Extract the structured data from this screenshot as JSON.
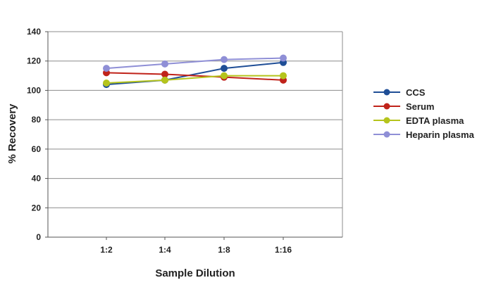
{
  "chart_data": {
    "type": "line",
    "title": "",
    "xlabel": "Sample Dilution",
    "ylabel": "% Recovery",
    "categories": [
      "1:2",
      "1:4",
      "1:8",
      "1:16"
    ],
    "ylim": [
      0,
      140
    ],
    "yticks": [
      0,
      20,
      40,
      60,
      80,
      100,
      120,
      140
    ],
    "grid": true,
    "legend_position": "right",
    "series": [
      {
        "name": "CCS",
        "color": "#1f4e96",
        "values": [
          104,
          107,
          115,
          119
        ]
      },
      {
        "name": "Serum",
        "color": "#c0231a",
        "values": [
          112,
          111,
          109,
          107
        ]
      },
      {
        "name": "EDTA plasma",
        "color": "#b5c41c",
        "values": [
          105,
          107,
          110,
          110
        ]
      },
      {
        "name": "Heparin plasma",
        "color": "#8f8fd6",
        "values": [
          115,
          118,
          121,
          122
        ]
      }
    ]
  }
}
